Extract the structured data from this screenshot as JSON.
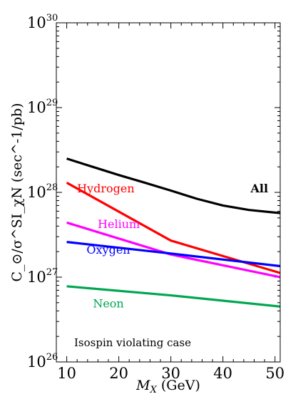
{
  "chart_data": {
    "type": "line",
    "xlabel": "M_X (GeV)",
    "ylabel": "C_⊙/σ^SI_χN (sec^-1/pb)",
    "xlim": [
      8,
      51
    ],
    "ylim": [
      1e+26,
      1e+30
    ],
    "yscale": "log",
    "x_ticks": [
      10,
      20,
      30,
      40,
      50
    ],
    "y_ticks": [
      {
        "value": 1e+26,
        "base": "10",
        "exponent": "26"
      },
      {
        "value": 1e+27,
        "base": "10",
        "exponent": "27"
      },
      {
        "value": 1e+28,
        "base": "10",
        "exponent": "28"
      },
      {
        "value": 1e+29,
        "base": "10",
        "exponent": "29"
      },
      {
        "value": 1e+30,
        "base": "10",
        "exponent": "30"
      }
    ],
    "annotation": "Isospin violating case",
    "series": [
      {
        "name": "All",
        "color": "#000000",
        "label_bold": true,
        "label_at": [
          47,
          1e+28
        ],
        "x": [
          10,
          15,
          20,
          25,
          30,
          35,
          40,
          45,
          51
        ],
        "y": [
          2.5e+28,
          2e+28,
          1.6e+28,
          1.3e+28,
          1.05e+28,
          8.4e+27,
          7e+27,
          6.2e+27,
          5.7e+27
        ]
      },
      {
        "name": "Hydrogen",
        "color": "#ff0000",
        "label_bold": false,
        "label_at": [
          17.5,
          1e+28
        ],
        "x": [
          10,
          30,
          51
        ],
        "y": [
          1.3e+28,
          2.7e+27,
          1.12e+27
        ]
      },
      {
        "name": "Helium",
        "color": "#ff00ff",
        "label_bold": false,
        "label_at": [
          20,
          3.8e+27
        ],
        "x": [
          10,
          30,
          51
        ],
        "y": [
          4.4e+27,
          1.85e+27,
          1e+27
        ]
      },
      {
        "name": "Oxygen",
        "color": "#0000ff",
        "label_bold": false,
        "label_at": [
          18,
          1.9e+27
        ],
        "x": [
          10,
          30,
          51
        ],
        "y": [
          2.6e+27,
          1.9e+27,
          1.35e+27
        ]
      },
      {
        "name": "Neon",
        "color": "#00a651",
        "label_bold": false,
        "label_at": [
          18,
          4.4e+26
        ],
        "x": [
          10,
          30,
          51
        ],
        "y": [
          7.8e+26,
          6.1e+26,
          4.5e+26
        ]
      }
    ]
  }
}
